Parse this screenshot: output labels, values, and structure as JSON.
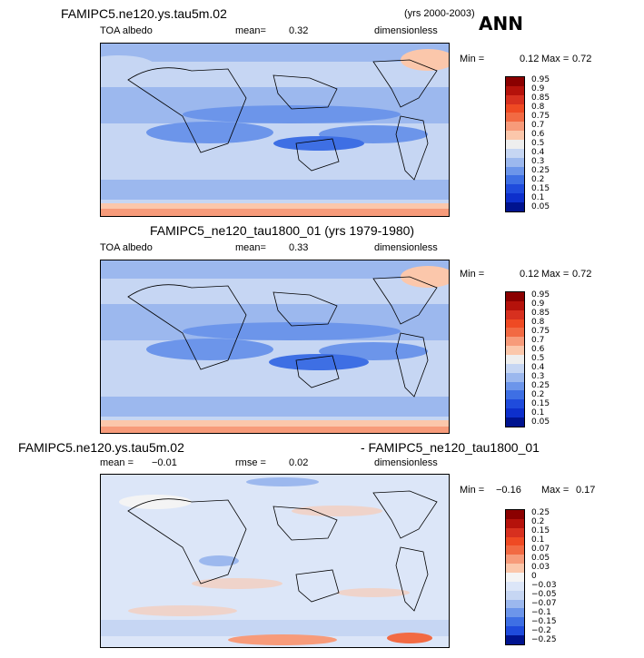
{
  "season": "ANN",
  "chart_data": [
    {
      "type": "heatmap",
      "title": "FAMIPC5.ne120.ys.tau5m.02",
      "subtitle": "(yrs 2000-2003)",
      "variable": "TOA albedo",
      "stat_label": "mean=",
      "stat_value": "0.32",
      "units": "dimensionless",
      "min_label": "Min =",
      "min_value": "0.12",
      "max_label": "Max =",
      "max_value": "0.72",
      "levels": [
        "0.95",
        "0.9",
        "0.85",
        "0.8",
        "0.75",
        "0.7",
        "0.6",
        "0.5",
        "0.4",
        "0.3",
        "0.25",
        "0.2",
        "0.15",
        "0.1",
        "0.05"
      ],
      "colors": [
        "#8b0000",
        "#b5120b",
        "#d7301f",
        "#ef4a23",
        "#f26a43",
        "#f79b7a",
        "#fbc7ab",
        "#eeeeee",
        "#c6d6f3",
        "#9cb8ee",
        "#6c95ea",
        "#3e6fe4",
        "#1f4bdc",
        "#0d2fcc",
        "#00138f"
      ]
    },
    {
      "type": "heatmap",
      "title": "FAMIPC5_ne120_tau1800_01 (yrs 1979-1980)",
      "variable": "TOA albedo",
      "stat_label": "mean=",
      "stat_value": "0.33",
      "units": "dimensionless",
      "min_label": "Min =",
      "min_value": "0.12",
      "max_label": "Max =",
      "max_value": "0.72",
      "levels": [
        "0.95",
        "0.9",
        "0.85",
        "0.8",
        "0.75",
        "0.7",
        "0.6",
        "0.5",
        "0.4",
        "0.3",
        "0.25",
        "0.2",
        "0.15",
        "0.1",
        "0.05"
      ],
      "colors": [
        "#8b0000",
        "#b5120b",
        "#d7301f",
        "#ef4a23",
        "#f26a43",
        "#f79b7a",
        "#fbc7ab",
        "#eeeeee",
        "#c6d6f3",
        "#9cb8ee",
        "#6c95ea",
        "#3e6fe4",
        "#1f4bdc",
        "#0d2fcc",
        "#00138f"
      ]
    },
    {
      "type": "heatmap",
      "title_left": "FAMIPC5.ne120.ys.tau5m.02",
      "title_right": "- FAMIPC5_ne120_tau1800_01",
      "mean_label": "mean =",
      "mean_value": "−0.01",
      "rmse_label": "rmse =",
      "rmse_value": "0.02",
      "units": "dimensionless",
      "min_label": "Min =",
      "min_value": "−0.16",
      "max_label": "Max =",
      "max_value": "0.17",
      "levels": [
        "0.25",
        "0.2",
        "0.15",
        "0.1",
        "0.07",
        "0.05",
        "0.03",
        "0",
        "−0.03",
        "−0.05",
        "−0.07",
        "−0.1",
        "−0.15",
        "−0.2",
        "−0.25"
      ],
      "colors": [
        "#8b0000",
        "#b5120b",
        "#d7301f",
        "#ef4a23",
        "#f26a43",
        "#f79b7a",
        "#fbc7ab",
        "#f4f4f4",
        "#dce6f8",
        "#c6d6f3",
        "#9cb8ee",
        "#6c95ea",
        "#3e6fe4",
        "#1f4bdc",
        "#00138f"
      ]
    }
  ]
}
